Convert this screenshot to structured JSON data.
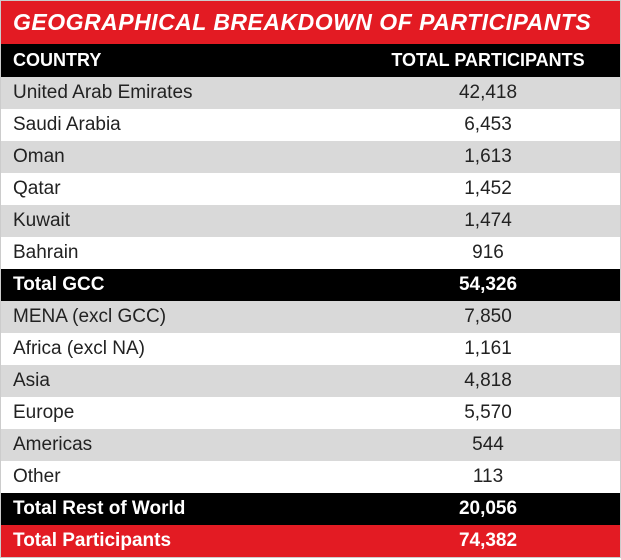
{
  "title": "GEOGRAPHICAL BREAKDOWN OF PARTICIPANTS",
  "columns": {
    "left": "COUNTRY",
    "right": "TOTAL PARTICIPANTS"
  },
  "colors": {
    "accent": "#e31b23",
    "header_bg": "#000000",
    "row_odd": "#d9d9d9",
    "row_even": "#ffffff",
    "text": "#222222"
  },
  "sections": [
    {
      "rows": [
        {
          "label": "United Arab Emirates",
          "value": "42,418"
        },
        {
          "label": "Saudi Arabia",
          "value": "6,453"
        },
        {
          "label": "Oman",
          "value": "1,613"
        },
        {
          "label": "Qatar",
          "value": "1,452"
        },
        {
          "label": "Kuwait",
          "value": "1,474"
        },
        {
          "label": "Bahrain",
          "value": "916"
        }
      ],
      "subtotal": {
        "label": "Total GCC",
        "value": "54,326"
      }
    },
    {
      "rows": [
        {
          "label": "MENA (excl GCC)",
          "value": "7,850"
        },
        {
          "label": "Africa (excl NA)",
          "value": "1,161"
        },
        {
          "label": "Asia",
          "value": "4,818"
        },
        {
          "label": "Europe",
          "value": "5,570"
        },
        {
          "label": "Americas",
          "value": "544"
        },
        {
          "label": "Other",
          "value": "113"
        }
      ],
      "subtotal": {
        "label": "Total Rest of World",
        "value": "20,056"
      }
    }
  ],
  "grand_total": {
    "label": "Total Participants",
    "value": "74,382"
  }
}
